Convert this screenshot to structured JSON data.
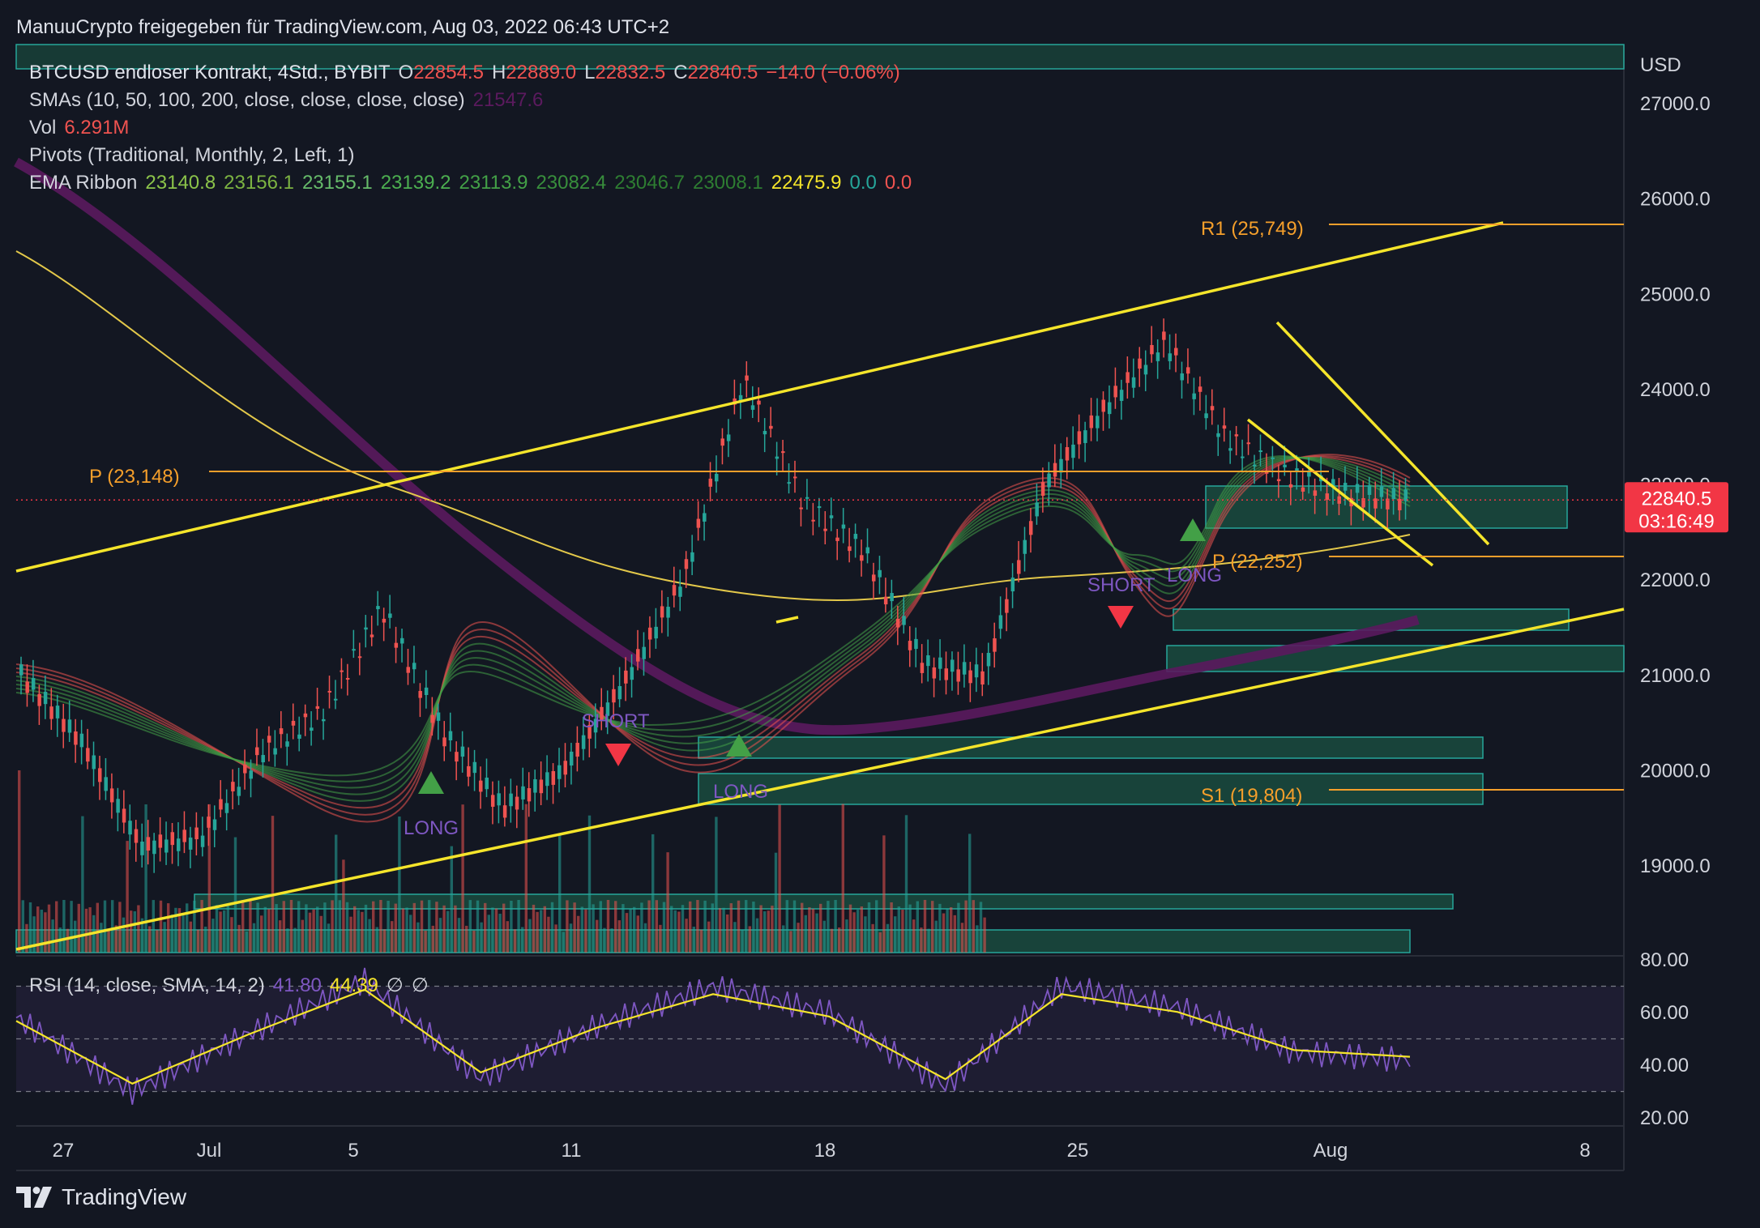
{
  "header": {
    "publisher": "ManuuCrypto freigegeben für TradingView.com, Aug 03, 2022 06:43 UTC+2"
  },
  "legend": {
    "symbol": "BTCUSD endloser Kontrakt, 4Std., BYBIT",
    "ohlc": {
      "o": "22854.5",
      "h": "22889.0",
      "l": "22832.5",
      "c": "22840.5",
      "change": "−14.0 (−0.06%)"
    },
    "sma_label": "SMAs (10, 50, 100, 200, close, close, close, close)",
    "sma_value": "21547.6",
    "vol_label": "Vol",
    "vol_value": "6.291M",
    "pivots_label": "Pivots (Traditional, Monthly, 2, Left, 1)",
    "ema_label": "EMA Ribbon",
    "ema_values": [
      "23140.8",
      "23156.1",
      "23155.1",
      "23139.2",
      "23113.9",
      "23082.4",
      "23046.7",
      "23008.1"
    ],
    "ema_extra": "22475.9",
    "ema_zero1": "0.0",
    "ema_zero2": "0.0"
  },
  "price_axis": {
    "currency": "USD",
    "current_price": "22840.5",
    "countdown": "03:16:49"
  },
  "pivots": {
    "r1": "R1 (25,749)",
    "p_old": "P (23,148)",
    "p_new": "P (22,252)",
    "s1": "S1 (19,804)"
  },
  "signals": {
    "long": "LONG",
    "short": "SHORT"
  },
  "rsi": {
    "label": "RSI (14, close, SMA, 14, 2)",
    "value": "41.80",
    "sma_value": "44.39",
    "na1": "∅",
    "na2": "∅"
  },
  "footer": {
    "brand": "TradingView"
  },
  "colors": {
    "background": "#131722",
    "up": "#26a69a",
    "down": "#ef5350",
    "trendline": "#f5e52b",
    "pivot": "#f59f2b",
    "sma200": "#5b1a5e",
    "sma_yellow": "#e3c84a",
    "zone": "#1f7a58",
    "rsi": "#7e57c2",
    "rsi_sma": "#f5e52b",
    "price_badge": "#f23645"
  },
  "chart_data": {
    "type": "line",
    "symbol": "BTCUSD",
    "interval": "4Std.",
    "ylim": [
      18000,
      27500
    ],
    "y_ticks": [
      19000,
      20000,
      21000,
      22000,
      23000,
      24000,
      25000,
      26000,
      27000
    ],
    "y_tick_labels": [
      "19000.0",
      "20000.0",
      "21000.0",
      "22000.0",
      "23000.0",
      "24000.0",
      "25000.0",
      "26000.0",
      "27000.0"
    ],
    "x_ticks": [
      "27",
      "Jul",
      "5",
      "11",
      "18",
      "25",
      "Aug",
      "8"
    ],
    "pivot_levels": {
      "R1": 25749,
      "P_prev": 23148,
      "P": 22252,
      "S1": 19804
    },
    "last_price": 22840.5,
    "series": [
      {
        "name": "BTCUSD",
        "x": [
          "Jun 27",
          "Jun 29",
          "Jul 1",
          "Jul 3",
          "Jul 5",
          "Jul 7",
          "Jul 9",
          "Jul 11",
          "Jul 13",
          "Jul 14",
          "Jul 16",
          "Jul 18",
          "Jul 20",
          "Jul 22",
          "Jul 24",
          "Jul 26",
          "Jul 27",
          "Jul 28",
          "Jul 29",
          "Jul 30",
          "Jul 31",
          "Aug 1",
          "Aug 2",
          "Aug 3"
        ],
        "values": [
          21000,
          20300,
          19200,
          19300,
          20200,
          20600,
          21700,
          20400,
          19600,
          20000,
          20900,
          22000,
          24100,
          22800,
          22300,
          21100,
          21000,
          23000,
          23800,
          24500,
          23500,
          23100,
          22900,
          22840
        ]
      },
      {
        "name": "SMA 200",
        "x": [
          "Jun 26",
          "Jul 2",
          "Jul 8",
          "Jul 14",
          "Jul 20",
          "Jul 26",
          "Aug 3"
        ],
        "values": [
          26300,
          24500,
          22300,
          20800,
          20500,
          20900,
          21550
        ]
      }
    ],
    "rsi": {
      "ylim": [
        20,
        80
      ],
      "y_ticks": [
        "80.00",
        "60.00",
        "40.00",
        "20.00"
      ],
      "last": 41.8,
      "sma_last": 44.39,
      "x": [
        "Jun 26",
        "Jun 30",
        "Jul 4",
        "Jul 8",
        "Jul 12",
        "Jul 15",
        "Jul 20",
        "Jul 24",
        "Jul 27",
        "Jul 29",
        "Jul 31",
        "Aug 2",
        "Aug 3"
      ],
      "values": [
        58,
        30,
        52,
        72,
        35,
        55,
        70,
        60,
        32,
        70,
        62,
        45,
        42
      ]
    }
  }
}
